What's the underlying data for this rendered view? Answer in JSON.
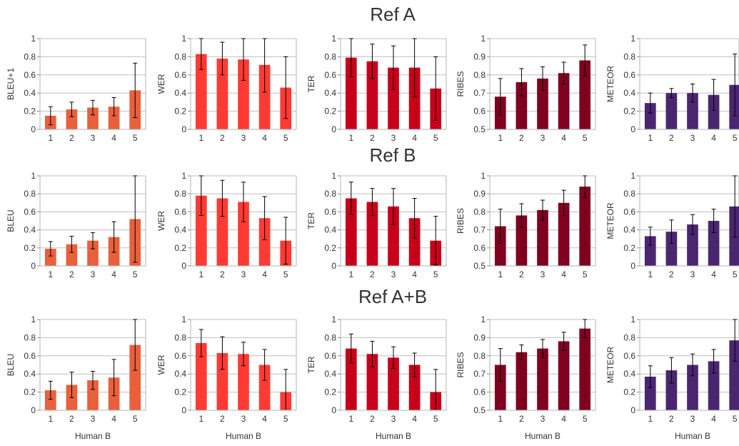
{
  "colors": {
    "BLEU": "#e8603c",
    "WER": "#ff3a33",
    "TER": "#c8001a",
    "RIBES": "#800020",
    "METEOR": "#4b2670",
    "grid": "#bfbfbf",
    "errorbar": "#000000"
  },
  "row_titles": [
    "Ref A",
    "Ref B",
    "Ref A+B"
  ],
  "chart_data": [
    {
      "type": "bar",
      "group": "Ref A",
      "metric": "BLEU",
      "ylabel": "BLEU+1",
      "xlabel": "",
      "categories": [
        "1",
        "2",
        "3",
        "4",
        "5"
      ],
      "values": [
        0.15,
        0.22,
        0.24,
        0.25,
        0.43
      ],
      "errors": [
        0.1,
        0.08,
        0.08,
        0.1,
        0.3
      ],
      "ylim": [
        0,
        1
      ],
      "yticks": [
        "0",
        "0.2",
        "0.4",
        "0.6",
        "0.8",
        "1"
      ],
      "grid": true
    },
    {
      "type": "bar",
      "group": "Ref A",
      "metric": "WER",
      "ylabel": "WER",
      "xlabel": "",
      "categories": [
        "1",
        "2",
        "3",
        "4",
        "5"
      ],
      "values": [
        0.83,
        0.78,
        0.77,
        0.71,
        0.46
      ],
      "errors": [
        0.17,
        0.18,
        0.23,
        0.3,
        0.34
      ],
      "ylim": [
        0,
        1
      ],
      "yticks": [
        "0",
        "0.2",
        "0.4",
        "0.6",
        "0.8",
        "1"
      ],
      "grid": true
    },
    {
      "type": "bar",
      "group": "Ref A",
      "metric": "TER",
      "ylabel": "TER",
      "xlabel": "",
      "categories": [
        "1",
        "2",
        "3",
        "4",
        "5"
      ],
      "values": [
        0.79,
        0.75,
        0.68,
        0.68,
        0.45
      ],
      "errors": [
        0.21,
        0.19,
        0.24,
        0.32,
        0.35
      ],
      "ylim": [
        0,
        1
      ],
      "yticks": [
        "0",
        "0.2",
        "0.4",
        "0.6",
        "0.8",
        "1"
      ],
      "grid": true
    },
    {
      "type": "bar",
      "group": "Ref A",
      "metric": "RIBES",
      "ylabel": "RIBES",
      "xlabel": "",
      "categories": [
        "1",
        "2",
        "3",
        "4",
        "5"
      ],
      "values": [
        0.68,
        0.76,
        0.78,
        0.81,
        0.88
      ],
      "errors": [
        0.1,
        0.075,
        0.065,
        0.06,
        0.085
      ],
      "ylim": [
        0.5,
        1
      ],
      "yticks": [
        "0.5",
        "0.6",
        "0.7",
        "0.8",
        "0.9",
        "1"
      ],
      "grid": true
    },
    {
      "type": "bar",
      "group": "Ref A",
      "metric": "METEOR",
      "ylabel": "METEOR",
      "xlabel": "",
      "categories": [
        "1",
        "2",
        "3",
        "4",
        "5"
      ],
      "values": [
        0.29,
        0.4,
        0.4,
        0.38,
        0.49
      ],
      "errors": [
        0.11,
        0.05,
        0.1,
        0.17,
        0.34
      ],
      "ylim": [
        0,
        1
      ],
      "yticks": [
        "0",
        "0.2",
        "0.4",
        "0.6",
        "0.8",
        "1"
      ],
      "grid": true
    },
    {
      "type": "bar",
      "group": "Ref B",
      "metric": "BLEU",
      "ylabel": "BLEU",
      "xlabel": "",
      "categories": [
        "1",
        "2",
        "3",
        "4",
        "5"
      ],
      "values": [
        0.19,
        0.24,
        0.28,
        0.32,
        0.52
      ],
      "errors": [
        0.08,
        0.09,
        0.09,
        0.17,
        0.48
      ],
      "ylim": [
        0,
        1
      ],
      "yticks": [
        "0",
        "0.2",
        "0.4",
        "0.6",
        "0.8",
        "1"
      ],
      "grid": true
    },
    {
      "type": "bar",
      "group": "Ref B",
      "metric": "WER",
      "ylabel": "WER",
      "xlabel": "",
      "categories": [
        "1",
        "2",
        "3",
        "4",
        "5"
      ],
      "values": [
        0.78,
        0.75,
        0.71,
        0.53,
        0.28
      ],
      "errors": [
        0.22,
        0.2,
        0.22,
        0.24,
        0.26
      ],
      "ylim": [
        0,
        1
      ],
      "yticks": [
        "0",
        "0.2",
        "0.4",
        "0.6",
        "0.8",
        "1"
      ],
      "grid": true
    },
    {
      "type": "bar",
      "group": "Ref B",
      "metric": "TER",
      "ylabel": "TER",
      "xlabel": "",
      "categories": [
        "1",
        "2",
        "3",
        "4",
        "5"
      ],
      "values": [
        0.75,
        0.71,
        0.66,
        0.53,
        0.28
      ],
      "errors": [
        0.18,
        0.15,
        0.2,
        0.22,
        0.27
      ],
      "ylim": [
        0,
        1
      ],
      "yticks": [
        "0",
        "0.2",
        "0.4",
        "0.6",
        "0.8",
        "1"
      ],
      "grid": true
    },
    {
      "type": "bar",
      "group": "Ref B",
      "metric": "RIBES",
      "ylabel": "RIBES",
      "xlabel": "",
      "categories": [
        "1",
        "2",
        "3",
        "4",
        "5"
      ],
      "values": [
        0.72,
        0.78,
        0.81,
        0.85,
        0.94
      ],
      "errors": [
        0.095,
        0.065,
        0.055,
        0.07,
        0.06
      ],
      "ylim": [
        0.5,
        1
      ],
      "yticks": [
        "0.5",
        "0.6",
        "0.7",
        "0.8",
        "0.9",
        "1"
      ],
      "grid": true
    },
    {
      "type": "bar",
      "group": "Ref B",
      "metric": "METEOR",
      "ylabel": "METEOR",
      "xlabel": "",
      "categories": [
        "1",
        "2",
        "3",
        "4",
        "5"
      ],
      "values": [
        0.33,
        0.38,
        0.46,
        0.5,
        0.66
      ],
      "errors": [
        0.1,
        0.13,
        0.11,
        0.13,
        0.34
      ],
      "ylim": [
        0,
        1
      ],
      "yticks": [
        "0",
        "0.2",
        "0.4",
        "0.6",
        "0.8",
        "1"
      ],
      "grid": true
    },
    {
      "type": "bar",
      "group": "Ref A+B",
      "metric": "BLEU",
      "ylabel": "BLEU",
      "xlabel": "Human B",
      "categories": [
        "1",
        "2",
        "3",
        "4",
        "5"
      ],
      "values": [
        0.22,
        0.28,
        0.33,
        0.36,
        0.72
      ],
      "errors": [
        0.1,
        0.14,
        0.1,
        0.2,
        0.28
      ],
      "ylim": [
        0,
        1
      ],
      "yticks": [
        "0",
        "0.2",
        "0.4",
        "0.6",
        "0.8",
        "1"
      ],
      "grid": true
    },
    {
      "type": "bar",
      "group": "Ref A+B",
      "metric": "WER",
      "ylabel": "WER",
      "xlabel": "Human B",
      "categories": [
        "1",
        "2",
        "3",
        "4",
        "5"
      ],
      "values": [
        0.74,
        0.63,
        0.62,
        0.5,
        0.2
      ],
      "errors": [
        0.15,
        0.18,
        0.13,
        0.17,
        0.25
      ],
      "ylim": [
        0,
        1
      ],
      "yticks": [
        "0",
        "0.2",
        "0.4",
        "0.6",
        "0.8",
        "1"
      ],
      "grid": true
    },
    {
      "type": "bar",
      "group": "Ref A+B",
      "metric": "TER",
      "ylabel": "TER",
      "xlabel": "Human B",
      "categories": [
        "1",
        "2",
        "3",
        "4",
        "5"
      ],
      "values": [
        0.68,
        0.62,
        0.58,
        0.5,
        0.2
      ],
      "errors": [
        0.16,
        0.14,
        0.12,
        0.13,
        0.25
      ],
      "ylim": [
        0,
        1
      ],
      "yticks": [
        "0",
        "0.2",
        "0.4",
        "0.6",
        "0.8",
        "1"
      ],
      "grid": true
    },
    {
      "type": "bar",
      "group": "Ref A+B",
      "metric": "RIBES",
      "ylabel": "RIBES",
      "xlabel": "Human B",
      "categories": [
        "1",
        "2",
        "3",
        "4",
        "5"
      ],
      "values": [
        0.75,
        0.82,
        0.84,
        0.88,
        0.95
      ],
      "errors": [
        0.09,
        0.04,
        0.05,
        0.05,
        0.05
      ],
      "ylim": [
        0.5,
        1
      ],
      "yticks": [
        "0.5",
        "0.6",
        "0.7",
        "0.8",
        "0.9",
        "1"
      ],
      "grid": true
    },
    {
      "type": "bar",
      "group": "Ref A+B",
      "metric": "METEOR",
      "ylabel": "METEOR",
      "xlabel": "Human B",
      "categories": [
        "1",
        "2",
        "3",
        "4",
        "5"
      ],
      "values": [
        0.37,
        0.44,
        0.5,
        0.54,
        0.77
      ],
      "errors": [
        0.12,
        0.14,
        0.12,
        0.13,
        0.23
      ],
      "ylim": [
        0,
        1
      ],
      "yticks": [
        "0",
        "0.2",
        "0.4",
        "0.6",
        "0.8",
        "1"
      ],
      "grid": true
    }
  ]
}
